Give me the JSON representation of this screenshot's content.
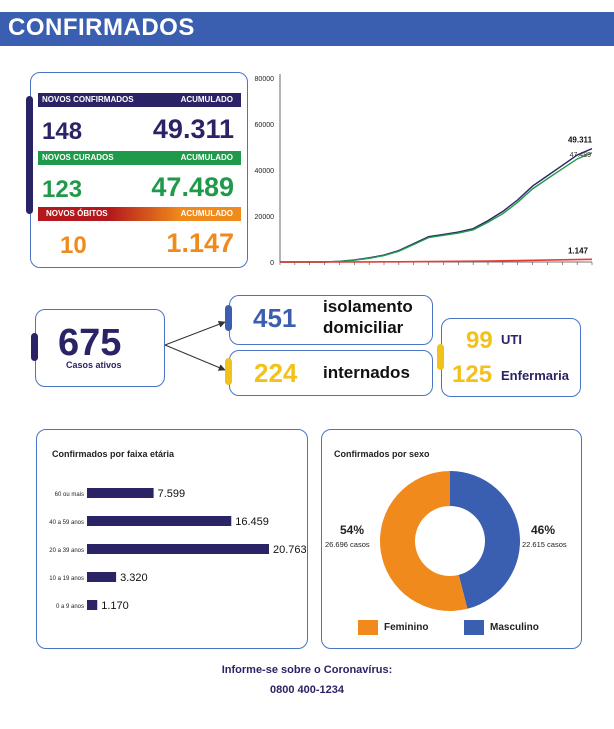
{
  "header": {
    "title": "CONFIRMADOS"
  },
  "summary": {
    "confirmados": {
      "label": "NOVOS CONFIRMADOS",
      "acc_label": "ACUMULADO",
      "new": "148",
      "total": "49.311"
    },
    "curados": {
      "label": "NOVOS CURADOS",
      "acc_label": "ACUMULADO",
      "new": "123",
      "total": "47.489"
    },
    "obitos": {
      "label": "NOVOS ÓBITOS",
      "acc_label": "ACUMULADO",
      "new": "10",
      "total": "1.147"
    }
  },
  "colors": {
    "navy": "#2a2466",
    "blue": "#3a5fb0",
    "green": "#1f9a4a",
    "orange": "#f08a1c",
    "red": "#b3181d",
    "yellow": "#f2c21b",
    "masculino": "#3a5fb0",
    "feminino": "#f08a1c"
  },
  "active": {
    "number": "675",
    "label": "Casos ativos"
  },
  "isolamento": {
    "number": "451",
    "label_line1": "isolamento",
    "label_line2": "domiciliar"
  },
  "internados": {
    "number": "224",
    "label": "internados"
  },
  "hospital": {
    "uti_number": "99",
    "uti_label": "UTI",
    "enf_number": "125",
    "enf_label": "Enfermaria"
  },
  "chart_data": [
    {
      "type": "line",
      "title": "",
      "xlabel": "",
      "ylabel": "",
      "ylim": [
        0,
        80000
      ],
      "yticks": [
        "0",
        "20000",
        "40000",
        "60000",
        "80000"
      ],
      "x": [
        0,
        1,
        2,
        3,
        4,
        5,
        6,
        7,
        8,
        9,
        10,
        11,
        12,
        13,
        14,
        15,
        16,
        17,
        18,
        19,
        20,
        21
      ],
      "series": [
        {
          "name": "Confirmados",
          "color": "#2a2466",
          "values": [
            0,
            0,
            0,
            0,
            300,
            900,
            1800,
            3000,
            5000,
            8000,
            11000,
            12000,
            13000,
            14500,
            18000,
            22000,
            27000,
            33000,
            37500,
            42000,
            46500,
            49311
          ]
        },
        {
          "name": "Curados",
          "color": "#1f9a4a",
          "values": [
            0,
            0,
            0,
            0,
            250,
            800,
            1600,
            2800,
            4700,
            7600,
            10600,
            11600,
            12600,
            14000,
            17300,
            21000,
            26000,
            31800,
            36200,
            40500,
            44800,
            47489
          ]
        },
        {
          "name": "Óbitos",
          "color": "#e0403a",
          "values": [
            0,
            0,
            0,
            0,
            10,
            25,
            45,
            70,
            100,
            150,
            200,
            250,
            300,
            360,
            430,
            520,
            620,
            740,
            860,
            960,
            1060,
            1147
          ]
        }
      ],
      "end_labels": [
        "49.311",
        "47.489",
        "1.147"
      ]
    },
    {
      "type": "bar",
      "title": "Confirmados por faixa etária",
      "categories": [
        "60 ou mais",
        "40 a 59 anos",
        "20 a 39 anos",
        "10 a 19 anos",
        "0 a 9 anos"
      ],
      "values": [
        7599,
        16459,
        20763,
        3320,
        1170
      ],
      "labels": [
        "7.599",
        "16.459",
        "20.763",
        "3.320",
        "1.170"
      ],
      "xlim": [
        0,
        20763
      ]
    },
    {
      "type": "pie",
      "title": "Confirmados por sexo",
      "slices": [
        {
          "name": "Masculino",
          "percent": 46,
          "value": 22615,
          "pct_label": "46%",
          "count_label": "22.615 casos",
          "color": "#3a5fb0"
        },
        {
          "name": "Feminino",
          "percent": 54,
          "value": 26696,
          "pct_label": "54%",
          "count_label": "26.696 casos",
          "color": "#f08a1c"
        }
      ],
      "legend": [
        "Feminino",
        "Masculino"
      ]
    }
  ],
  "footer": {
    "line1": "Informe-se sobre o Coronavírus:",
    "line2": "0800 400-1234"
  }
}
